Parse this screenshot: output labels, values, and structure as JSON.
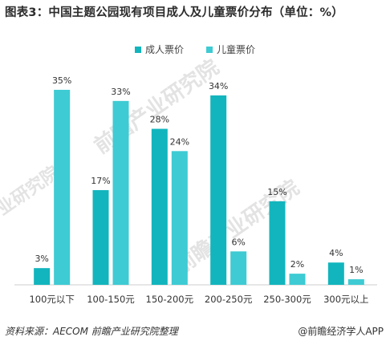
{
  "title": "图表3：中国主题公园现有项目成人及儿童票价分布（单位：%）",
  "footer": {
    "source": "资料来源：AECOM 前瞻产业研究院整理",
    "brand": "@前瞻经济学人APP"
  },
  "watermark": {
    "text": "前瞻产业研究院",
    "text2": "产业研究院",
    "color": "#e3e3e3"
  },
  "chart_data": {
    "type": "bar",
    "categories": [
      "100元以下",
      "100-150元",
      "150-200元",
      "200-250元",
      "250-300元",
      "300元以上"
    ],
    "series": [
      {
        "name": "成人票价",
        "values": [
          3,
          17,
          28,
          34,
          15,
          4
        ],
        "labels": [
          "3%",
          "17%",
          "28%",
          "34%",
          "15%",
          "4%"
        ],
        "color": "#12b5bd"
      },
      {
        "name": "儿童票价",
        "values": [
          35,
          33,
          24,
          6,
          2,
          1
        ],
        "labels": [
          "35%",
          "33%",
          "24%",
          "6%",
          "2%",
          "1%"
        ],
        "color": "#3ecbd3"
      }
    ],
    "ylim": [
      0,
      36
    ],
    "grid": false,
    "legend": "top-center"
  }
}
